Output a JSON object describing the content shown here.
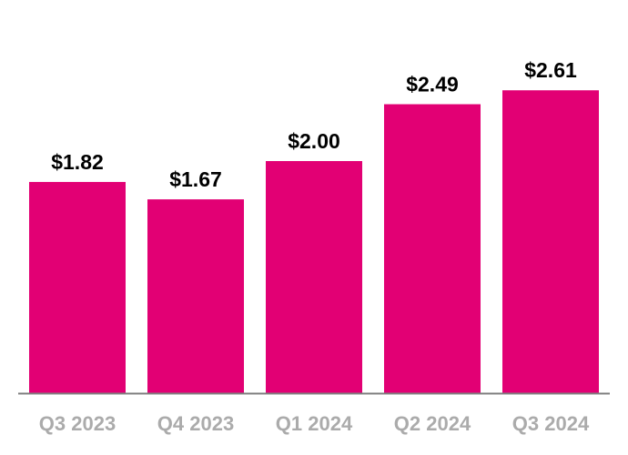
{
  "chart_data": {
    "type": "bar",
    "title": "",
    "xlabel": "",
    "ylabel": "",
    "categories": [
      "Q3 2023",
      "Q4 2023",
      "Q1 2024",
      "Q2 2024",
      "Q3 2024"
    ],
    "values": [
      1.82,
      1.67,
      2.0,
      2.49,
      2.61
    ],
    "value_labels": [
      "$1.82",
      "$1.67",
      "$2.00",
      "$2.49",
      "$2.61"
    ],
    "ylim": [
      0,
      2.61
    ],
    "grid": false,
    "bar_color": "#e20074",
    "axis_color": "#7f7f7f",
    "category_label_color": "#ababab"
  }
}
